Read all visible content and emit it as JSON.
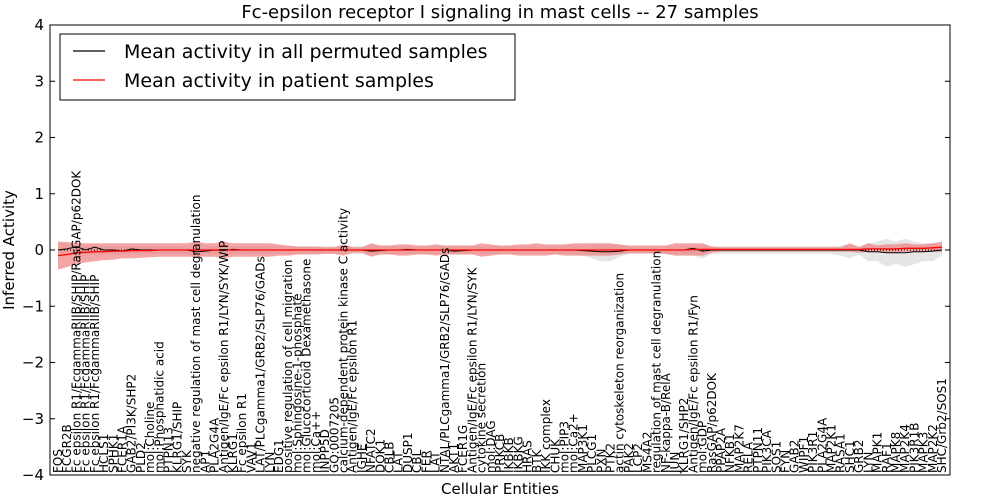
{
  "chart_data": {
    "type": "line",
    "title": "Fc-epsilon receptor I signaling in mast cells -- 27 samples",
    "xlabel": "Cellular Entities",
    "ylabel": "Inferred Activity",
    "ylim": [
      -4,
      4
    ],
    "yticks": [
      -4,
      -3,
      -2,
      -1,
      0,
      1,
      2,
      3,
      4
    ],
    "ytick_labels": [
      "−4",
      "−3",
      "−2",
      "−1",
      "0",
      "1",
      "2",
      "3",
      "4"
    ],
    "grid": false,
    "legend": {
      "placement": "top-left",
      "entries": [
        {
          "label": "Mean activity in all permuted samples",
          "color": "#000000"
        },
        {
          "label": "Mean activity in patient samples",
          "color": "#ff0000"
        }
      ]
    },
    "colors": {
      "patient_line": "#ff0000",
      "patient_band": "#f08080",
      "permuted_line": "#000000",
      "permuted_band": "#d3d3d3",
      "zero_line": "#000000"
    },
    "categories": [
      "FOS",
      "FCGR2B",
      "Fc epsilon R1/FcgammaRIIB/SHIP/RasGAP/p62DOK",
      "Fc epsilon R1/FcgammaRIIB/SHIP",
      "Fc epsilon R1/FcgammaRIIB/SHIP",
      "HCLS1",
      "SPHK1",
      "FCER1A",
      "GAB2/PI3K/SHP2",
      "PLD2",
      "mol:Choline",
      "mol:Phosphatidic acid",
      "PTPN13",
      "KLRG1/SHIP",
      "SYK",
      "negative regulation of mast cell degranulation",
      "AP1",
      "PLA2G4A",
      "Antigen/IgE/Fc epsilon R1/LYN/SYK/WIP",
      "KLRG1",
      "Fc epsilon R1",
      "VAV1",
      "LAT/PLCgamma1/GRB2/SLP76/GADs",
      "LYN",
      "EDG1",
      "positive regulation of cell migration",
      "mol:Sphingosine-1-phosphate",
      "mol:Glucocorticoid Dexamethasone",
      "mol:Ca++",
      "INPP5D",
      "GO:0007205",
      "calcium-dependent protein kinase C activity",
      "Antigen/IgE/Fc epsilon R1",
      "IGHE",
      "NFATC2",
      "DOK1",
      "CBLB",
      "LAT",
      "DUSP1",
      "CBL",
      "FER",
      "LAT",
      "NTAL/PLCgamma1/GRB2/SLP76/GADs",
      "AKT1",
      "FCER1G",
      "Antigen/IgE/Fc epsilon R1/LYN/SYK",
      "cytokine secretion",
      "mol:DAG",
      "PRKCB",
      "IKBKB",
      "IKBKG",
      "HRAS",
      "BTK",
      "IKK complex",
      "CHUK",
      "mol:PIP3",
      "mol:Ca2+",
      "MAP3K1",
      "PLCG1",
      "PXN",
      "PTK2",
      "actin cytoskeleton reorganization",
      "PAK2",
      "LCP2",
      "MS4A2",
      "regulation of mast cell degranulation",
      "NF-kappa-B/RelA",
      "JUN",
      "KLRG1/SHP2",
      "Antigen/IgE/Fc epsilon R1/Fyn",
      "mol:GDP",
      "RasGAP/p62DOK",
      "PPAP2A",
      "NFKB1",
      "MAP2K7",
      "RELA",
      "PTPN11",
      "PIK3CA",
      "SOS1",
      "FYN",
      "GAB2",
      "WIPF1",
      "PIK3R1",
      "PLA2G4A",
      "MAP2K1",
      "RASA1",
      "SHC1",
      "GRB2",
      "LYN",
      "MAPK1",
      "RAF1",
      "MAPK8",
      "MAP2K4",
      "PIK3R1B",
      "MAPK3",
      "MAP2K2",
      "SHC/Grb2/SOS1"
    ],
    "series": [
      {
        "name": "Mean activity in all permuted samples",
        "color": "#000000",
        "values": [
          0.0,
          0.02,
          0.06,
          0.0,
          0.05,
          0.0,
          0.0,
          -0.02,
          0.02,
          0.0,
          0.0,
          0.0,
          0.0,
          0.0,
          0.0,
          -0.03,
          -0.02,
          0.0,
          -0.01,
          0.01,
          0.0,
          0.0,
          0.0,
          0.0,
          0.0,
          0.0,
          0.0,
          0.0,
          0.0,
          0.0,
          0.0,
          0.0,
          0.0,
          0.0,
          -0.02,
          -0.01,
          0.0,
          0.0,
          0.01,
          0.0,
          0.0,
          0.0,
          0.0,
          -0.02,
          -0.01,
          0.0,
          0.0,
          0.0,
          0.0,
          0.0,
          0.0,
          0.0,
          0.0,
          0.0,
          0.0,
          0.0,
          0.0,
          -0.01,
          -0.02,
          -0.03,
          -0.03,
          -0.02,
          0.0,
          0.0,
          0.0,
          0.0,
          0.0,
          0.0,
          0.0,
          0.03,
          -0.02,
          0.0,
          0.0,
          0.0,
          0.0,
          0.0,
          0.0,
          0.0,
          0.0,
          0.0,
          0.0,
          0.0,
          0.0,
          0.0,
          0.0,
          0.0,
          0.0,
          0.0,
          -0.03,
          -0.03,
          -0.05,
          -0.05,
          -0.05,
          -0.03,
          -0.03,
          -0.02,
          0.0
        ],
        "band_lower": [
          -0.12,
          -0.1,
          -0.08,
          -0.08,
          -0.08,
          -0.07,
          -0.07,
          -0.08,
          -0.07,
          -0.07,
          -0.07,
          -0.07,
          -0.07,
          -0.07,
          -0.07,
          -0.15,
          -0.08,
          -0.07,
          -0.08,
          -0.07,
          -0.07,
          -0.07,
          -0.07,
          -0.07,
          -0.07,
          -0.07,
          -0.07,
          -0.07,
          -0.07,
          -0.07,
          -0.07,
          -0.07,
          -0.07,
          -0.07,
          -0.08,
          -0.08,
          -0.07,
          -0.07,
          -0.07,
          -0.07,
          -0.07,
          -0.07,
          -0.07,
          -0.08,
          -0.08,
          -0.07,
          -0.07,
          -0.07,
          -0.07,
          -0.07,
          -0.07,
          -0.07,
          -0.07,
          -0.07,
          -0.07,
          -0.08,
          -0.08,
          -0.1,
          -0.15,
          -0.2,
          -0.2,
          -0.12,
          -0.07,
          -0.07,
          -0.07,
          -0.07,
          -0.07,
          -0.08,
          -0.08,
          -0.1,
          -0.15,
          -0.07,
          -0.07,
          -0.07,
          -0.07,
          -0.07,
          -0.07,
          -0.07,
          -0.07,
          -0.07,
          -0.07,
          -0.07,
          -0.07,
          -0.07,
          -0.07,
          -0.1,
          -0.15,
          -0.08,
          -0.2,
          -0.2,
          -0.3,
          -0.25,
          -0.3,
          -0.25,
          -0.2,
          -0.2,
          -0.1
        ],
        "band_upper": [
          0.12,
          0.1,
          0.1,
          0.08,
          0.08,
          0.07,
          0.07,
          0.07,
          0.07,
          0.07,
          0.07,
          0.07,
          0.07,
          0.07,
          0.07,
          0.15,
          0.08,
          0.07,
          0.08,
          0.07,
          0.07,
          0.07,
          0.07,
          0.07,
          0.07,
          0.07,
          0.07,
          0.07,
          0.07,
          0.07,
          0.07,
          0.07,
          0.07,
          0.07,
          0.08,
          0.08,
          0.07,
          0.07,
          0.07,
          0.07,
          0.07,
          0.07,
          0.07,
          0.08,
          0.08,
          0.07,
          0.07,
          0.07,
          0.07,
          0.07,
          0.07,
          0.07,
          0.07,
          0.07,
          0.07,
          0.08,
          0.08,
          0.08,
          0.1,
          0.1,
          0.1,
          0.08,
          0.07,
          0.07,
          0.07,
          0.07,
          0.07,
          0.08,
          0.08,
          0.08,
          0.08,
          0.07,
          0.07,
          0.07,
          0.07,
          0.07,
          0.07,
          0.07,
          0.07,
          0.07,
          0.07,
          0.07,
          0.07,
          0.07,
          0.07,
          0.08,
          0.1,
          0.07,
          0.12,
          0.15,
          0.2,
          0.15,
          0.2,
          0.15,
          0.12,
          0.12,
          0.1
        ]
      },
      {
        "name": "Mean activity in patient samples",
        "color": "#ff0000",
        "values": [
          -0.1,
          -0.08,
          -0.05,
          -0.04,
          -0.03,
          -0.03,
          -0.02,
          -0.02,
          -0.01,
          -0.01,
          -0.01,
          0.0,
          0.0,
          0.0,
          0.0,
          0.0,
          0.0,
          0.0,
          0.0,
          0.0,
          0.0,
          0.0,
          0.0,
          0.0,
          0.0,
          0.0,
          0.0,
          0.0,
          0.0,
          0.0,
          0.0,
          0.0,
          0.0,
          0.0,
          0.0,
          0.0,
          0.0,
          0.0,
          0.0,
          0.0,
          0.0,
          0.0,
          0.0,
          0.0,
          0.0,
          0.0,
          0.0,
          0.0,
          0.0,
          0.0,
          0.0,
          0.0,
          0.0,
          0.0,
          0.0,
          0.0,
          0.0,
          0.0,
          0.0,
          0.0,
          0.0,
          0.0,
          0.0,
          0.0,
          0.0,
          0.0,
          0.0,
          0.0,
          0.0,
          0.01,
          0.01,
          0.01,
          0.01,
          0.01,
          0.01,
          0.01,
          0.01,
          0.01,
          0.01,
          0.01,
          0.01,
          0.01,
          0.01,
          0.01,
          0.01,
          0.01,
          0.01,
          0.01,
          0.02,
          0.02,
          0.02,
          0.02,
          0.03,
          0.03,
          0.03,
          0.04,
          0.05
        ],
        "band_lower": [
          -0.35,
          -0.3,
          -0.25,
          -0.22,
          -0.2,
          -0.18,
          -0.17,
          -0.15,
          -0.15,
          -0.14,
          -0.13,
          -0.12,
          -0.12,
          -0.12,
          -0.12,
          -0.12,
          -0.12,
          -0.12,
          -0.15,
          -0.12,
          -0.12,
          -0.12,
          -0.12,
          -0.12,
          -0.1,
          -0.1,
          -0.08,
          -0.08,
          -0.08,
          -0.07,
          -0.07,
          -0.1,
          -0.05,
          -0.05,
          -0.12,
          -0.08,
          -0.08,
          -0.1,
          -0.1,
          -0.08,
          -0.08,
          -0.1,
          -0.08,
          -0.08,
          -0.08,
          -0.08,
          -0.12,
          -0.1,
          -0.08,
          -0.08,
          -0.1,
          -0.1,
          -0.1,
          -0.1,
          -0.08,
          -0.1,
          -0.1,
          -0.1,
          -0.1,
          -0.1,
          -0.1,
          -0.08,
          -0.06,
          -0.06,
          -0.06,
          -0.06,
          -0.07,
          -0.1,
          -0.1,
          -0.1,
          -0.1,
          -0.05,
          -0.03,
          -0.03,
          -0.03,
          -0.03,
          -0.03,
          -0.03,
          -0.03,
          -0.03,
          -0.03,
          -0.03,
          -0.03,
          -0.03,
          -0.03,
          -0.03,
          -0.03,
          -0.05,
          -0.03,
          -0.03,
          -0.05,
          -0.05,
          -0.03,
          -0.03,
          -0.03,
          -0.03,
          -0.03
        ],
        "band_upper": [
          0.15,
          0.14,
          0.13,
          0.12,
          0.12,
          0.12,
          0.12,
          0.12,
          0.12,
          0.12,
          0.12,
          0.12,
          0.12,
          0.12,
          0.12,
          0.15,
          0.12,
          0.12,
          0.15,
          0.12,
          0.12,
          0.12,
          0.12,
          0.12,
          0.1,
          0.08,
          0.06,
          0.06,
          0.06,
          0.05,
          0.05,
          0.1,
          0.05,
          0.05,
          0.12,
          0.08,
          0.08,
          0.1,
          0.1,
          0.08,
          0.08,
          0.1,
          0.08,
          0.08,
          0.08,
          0.08,
          0.12,
          0.1,
          0.08,
          0.08,
          0.1,
          0.1,
          0.12,
          0.1,
          0.1,
          0.1,
          0.12,
          0.12,
          0.12,
          0.12,
          0.12,
          0.1,
          0.08,
          0.08,
          0.08,
          0.08,
          0.08,
          0.12,
          0.12,
          0.12,
          0.12,
          0.06,
          0.05,
          0.05,
          0.05,
          0.05,
          0.05,
          0.05,
          0.05,
          0.05,
          0.05,
          0.05,
          0.05,
          0.05,
          0.05,
          0.05,
          0.12,
          0.05,
          0.12,
          0.08,
          0.1,
          0.1,
          0.12,
          0.1,
          0.1,
          0.12,
          0.15
        ]
      }
    ]
  }
}
